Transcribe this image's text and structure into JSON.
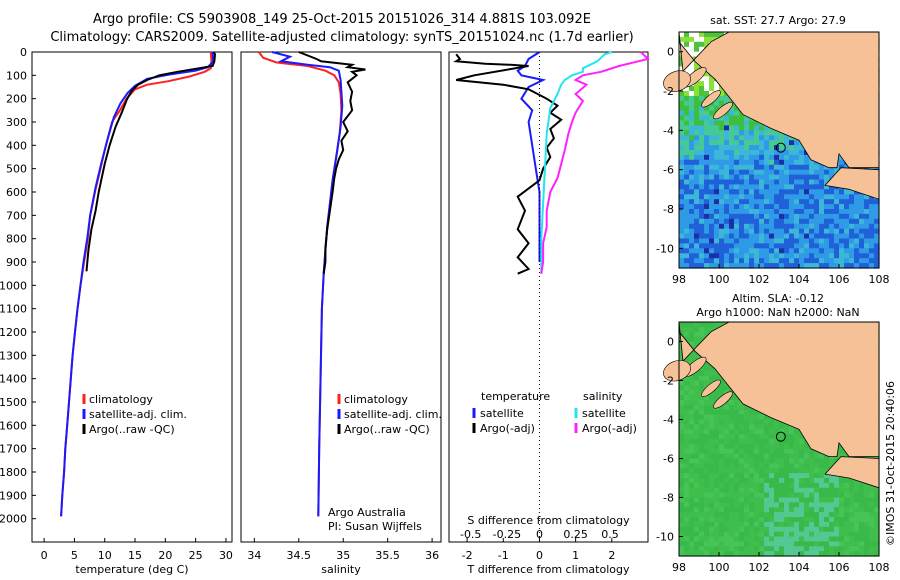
{
  "header": {
    "line1": "Argo profile: CS 5903908_149 25-Oct-2015 20151026_314 4.881S 103.092E",
    "line2": "Climatology: CARS2009. Satellite-adjusted climatology: synTS_20151024.nc (1.7d earlier)"
  },
  "colors": {
    "climatology": "#ff2020",
    "satellite": "#1a1aff",
    "argo": "#000000",
    "sat_salinity": "#22e5ee",
    "argo_salinity": "#ff22ff",
    "land": "#f6c197"
  },
  "chart_data": [
    {
      "type": "line",
      "id": "temperature",
      "xlabel": "temperature (deg C)",
      "ylabel": "",
      "xlim": [
        -2,
        31
      ],
      "ylim": [
        0,
        2100
      ],
      "xticks": [
        0,
        5,
        10,
        15,
        20,
        25,
        30
      ],
      "yticks": [
        0,
        100,
        200,
        300,
        400,
        500,
        600,
        700,
        800,
        900,
        1000,
        1100,
        1200,
        1300,
        1400,
        1500,
        1600,
        1700,
        1800,
        1900,
        2000
      ],
      "legend": [
        "climatology",
        "satellite-adj. clim.",
        "Argo(..raw -QC)"
      ],
      "series": [
        {
          "name": "climatology",
          "color": "#ff2020",
          "points": [
            [
              27.5,
              0
            ],
            [
              27.6,
              40
            ],
            [
              27.5,
              70
            ],
            [
              26.5,
              85
            ],
            [
              24,
              105
            ],
            [
              20.5,
              125
            ],
            [
              17,
              140
            ],
            [
              15,
              160
            ],
            [
              13.6,
              200
            ],
            [
              12.5,
              250
            ],
            [
              11.2,
              300
            ],
            [
              10.2,
              400
            ],
            [
              9.3,
              500
            ],
            [
              8.4,
              600
            ],
            [
              7.6,
              700
            ],
            [
              7.2,
              800
            ],
            [
              6.6,
              900
            ],
            [
              6.0,
              1000
            ],
            [
              5.5,
              1100
            ],
            [
              5.1,
              1200
            ],
            [
              4.7,
              1300
            ],
            [
              4.4,
              1400
            ],
            [
              4.1,
              1500
            ],
            [
              3.8,
              1600
            ],
            [
              3.5,
              1700
            ],
            [
              3.3,
              1800
            ],
            [
              3.0,
              1900
            ],
            [
              2.8,
              1990
            ]
          ]
        },
        {
          "name": "satellite-adj. clim.",
          "color": "#1a1aff",
          "points": [
            [
              27.8,
              0
            ],
            [
              27.9,
              40
            ],
            [
              27.0,
              65
            ],
            [
              25,
              80
            ],
            [
              21,
              95
            ],
            [
              17,
              115
            ],
            [
              15,
              145
            ],
            [
              13.8,
              175
            ],
            [
              12.6,
              220
            ],
            [
              11.5,
              280
            ],
            [
              10.4,
              380
            ],
            [
              9.4,
              480
            ],
            [
              8.5,
              580
            ],
            [
              7.6,
              700
            ],
            [
              7.1,
              800
            ],
            [
              6.5,
              900
            ],
            [
              6.0,
              1000
            ],
            [
              5.5,
              1100
            ],
            [
              5.1,
              1200
            ],
            [
              4.7,
              1300
            ],
            [
              4.4,
              1400
            ],
            [
              4.1,
              1500
            ],
            [
              3.8,
              1600
            ],
            [
              3.5,
              1700
            ],
            [
              3.3,
              1800
            ],
            [
              3.0,
              1900
            ],
            [
              2.8,
              1990
            ]
          ]
        },
        {
          "name": "Argo(..raw -QC)",
          "color": "#000000",
          "points": [
            [
              28.0,
              2
            ],
            [
              28.2,
              10
            ],
            [
              28.1,
              40
            ],
            [
              27.8,
              60
            ],
            [
              25.5,
              70
            ],
            [
              22,
              85
            ],
            [
              19,
              100
            ],
            [
              17,
              120
            ],
            [
              15.5,
              140
            ],
            [
              14.5,
              165
            ],
            [
              13.7,
              200
            ],
            [
              12.8,
              260
            ],
            [
              11.8,
              320
            ],
            [
              10.8,
              400
            ],
            [
              10.0,
              480
            ],
            [
              9.5,
              540
            ],
            [
              9.0,
              600
            ],
            [
              8.5,
              680
            ],
            [
              7.8,
              760
            ],
            [
              7.3,
              850
            ],
            [
              7.0,
              940
            ]
          ]
        }
      ]
    },
    {
      "type": "line",
      "id": "salinity",
      "xlabel": "salinity",
      "ylabel": "",
      "xlim": [
        33.85,
        36.1
      ],
      "ylim": [
        0,
        2100
      ],
      "xticks": [
        34,
        34.5,
        35,
        35.5,
        36
      ],
      "legend": [
        "climatology",
        "satellite-adj. clim.",
        "Argo(..raw -QC)"
      ],
      "annotations": [
        "Argo Australia",
        "PI: Susan Wijffels"
      ],
      "series": [
        {
          "name": "climatology",
          "color": "#ff2020",
          "points": [
            [
              34.05,
              0
            ],
            [
              34.1,
              25
            ],
            [
              34.25,
              45
            ],
            [
              34.6,
              60
            ],
            [
              34.8,
              80
            ],
            [
              34.9,
              100
            ],
            [
              34.95,
              130
            ],
            [
              34.97,
              180
            ],
            [
              34.98,
              250
            ],
            [
              34.96,
              350
            ],
            [
              34.92,
              450
            ],
            [
              34.88,
              550
            ],
            [
              34.85,
              650
            ],
            [
              34.82,
              750
            ],
            [
              34.8,
              850
            ],
            [
              34.78,
              950
            ],
            [
              34.76,
              1100
            ],
            [
              34.75,
              1300
            ],
            [
              34.74,
              1500
            ],
            [
              34.73,
              1700
            ],
            [
              34.72,
              1990
            ]
          ]
        },
        {
          "name": "satellite-adj. clim.",
          "color": "#1a1aff",
          "points": [
            [
              34.2,
              0
            ],
            [
              34.4,
              20
            ],
            [
              34.3,
              40
            ],
            [
              34.6,
              55
            ],
            [
              34.85,
              65
            ],
            [
              34.95,
              80
            ],
            [
              34.97,
              120
            ],
            [
              34.98,
              170
            ],
            [
              34.99,
              230
            ],
            [
              34.97,
              320
            ],
            [
              34.93,
              430
            ],
            [
              34.88,
              550
            ],
            [
              34.85,
              650
            ],
            [
              34.82,
              750
            ],
            [
              34.8,
              850
            ],
            [
              34.78,
              950
            ],
            [
              34.76,
              1100
            ],
            [
              34.75,
              1300
            ],
            [
              34.74,
              1500
            ],
            [
              34.73,
              1700
            ],
            [
              34.72,
              1990
            ]
          ]
        },
        {
          "name": "Argo(..raw -QC)",
          "color": "#000000",
          "points": [
            [
              34.5,
              0
            ],
            [
              34.7,
              30
            ],
            [
              34.75,
              40
            ],
            [
              35.1,
              55
            ],
            [
              35.05,
              65
            ],
            [
              35.25,
              75
            ],
            [
              35.1,
              85
            ],
            [
              35.15,
              100
            ],
            [
              35.05,
              130
            ],
            [
              35.1,
              170
            ],
            [
              35.08,
              210
            ],
            [
              35.1,
              250
            ],
            [
              35.0,
              300
            ],
            [
              35.05,
              340
            ],
            [
              34.98,
              380
            ],
            [
              35.0,
              420
            ],
            [
              34.95,
              460
            ],
            [
              34.92,
              500
            ],
            [
              34.9,
              540
            ],
            [
              34.88,
              600
            ],
            [
              34.85,
              680
            ],
            [
              34.82,
              760
            ],
            [
              34.8,
              840
            ],
            [
              34.8,
              900
            ],
            [
              34.78,
              950
            ]
          ]
        }
      ]
    },
    {
      "type": "line",
      "id": "difference",
      "xlabel": "T difference from climatology",
      "x2label": "S difference from climatology",
      "xlim": [
        -2.5,
        3.0
      ],
      "ylim": [
        0,
        2100
      ],
      "xticks": [
        -2,
        -1,
        0,
        1,
        2
      ],
      "x2ticks": [
        "-0.5",
        "-0.25",
        "0",
        "0.25",
        "0.5"
      ],
      "legend_temperature_title": "temperature",
      "legend_salinity_title": "salinity",
      "legend": [
        "satellite",
        "Argo(-adj)",
        "satellite",
        "Argo(-adj)"
      ],
      "series": [
        {
          "name": "T satellite",
          "color": "#1a1aff",
          "points": [
            [
              0,
              0
            ],
            [
              -0.3,
              30
            ],
            [
              -0.4,
              60
            ],
            [
              -0.6,
              80
            ],
            [
              -0.5,
              100
            ],
            [
              0.1,
              120
            ],
            [
              -0.3,
              150
            ],
            [
              -0.5,
              200
            ],
            [
              -0.2,
              250
            ],
            [
              -0.3,
              300
            ],
            [
              -0.2,
              400
            ],
            [
              -0.1,
              500
            ],
            [
              0,
              600
            ],
            [
              0,
              900
            ]
          ]
        },
        {
          "name": "T Argo(-adj)",
          "color": "#000000",
          "points": [
            [
              -2.3,
              10
            ],
            [
              -2.2,
              30
            ],
            [
              -2.3,
              40
            ],
            [
              -1.5,
              50
            ],
            [
              -0.8,
              55
            ],
            [
              -0.3,
              60
            ],
            [
              -1.8,
              100
            ],
            [
              -2.3,
              120
            ],
            [
              -1.0,
              140
            ],
            [
              -0.3,
              160
            ],
            [
              0.2,
              200
            ],
            [
              0.5,
              230
            ],
            [
              0.3,
              260
            ],
            [
              0.6,
              290
            ],
            [
              0.3,
              330
            ],
            [
              0.4,
              370
            ],
            [
              0.2,
              410
            ],
            [
              0.3,
              450
            ],
            [
              0.1,
              500
            ],
            [
              0,
              550
            ],
            [
              -0.6,
              620
            ],
            [
              -0.4,
              680
            ],
            [
              -0.6,
              760
            ],
            [
              -0.3,
              820
            ],
            [
              -0.6,
              880
            ],
            [
              -0.3,
              930
            ],
            [
              -0.6,
              950
            ]
          ]
        },
        {
          "name": "S satellite",
          "color": "#22e5ee",
          "points": [
            [
              2.0,
              0
            ],
            [
              1.8,
              10
            ],
            [
              1.6,
              40
            ],
            [
              1.2,
              70
            ],
            [
              1.2,
              85
            ],
            [
              0.9,
              100
            ],
            [
              0.7,
              120
            ],
            [
              0.6,
              140
            ],
            [
              0.5,
              180
            ],
            [
              0.3,
              240
            ],
            [
              0.2,
              350
            ],
            [
              0.15,
              500
            ],
            [
              0.1,
              650
            ],
            [
              0.05,
              800
            ],
            [
              0.05,
              950
            ]
          ]
        },
        {
          "name": "S Argo(-adj)",
          "color": "#ff22ff",
          "points": [
            [
              2.8,
              0
            ],
            [
              3.0,
              30
            ],
            [
              2.2,
              60
            ],
            [
              1.9,
              75
            ],
            [
              1.7,
              85
            ],
            [
              1.2,
              100
            ],
            [
              1.0,
              120
            ],
            [
              1.3,
              140
            ],
            [
              1.0,
              180
            ],
            [
              1.2,
              210
            ],
            [
              1.0,
              260
            ],
            [
              0.9,
              300
            ],
            [
              0.8,
              350
            ],
            [
              0.7,
              420
            ],
            [
              0.6,
              480
            ],
            [
              0.5,
              540
            ],
            [
              0.3,
              600
            ],
            [
              0.2,
              680
            ],
            [
              0.2,
              750
            ],
            [
              0.1,
              820
            ],
            [
              0.1,
              900
            ],
            [
              0.05,
              950
            ]
          ]
        }
      ]
    },
    {
      "type": "heatmap",
      "id": "sst_map",
      "title": "sat. SST: 27.7 Argo: 27.9",
      "xlim": [
        98,
        108
      ],
      "ylim": [
        -11,
        1
      ],
      "xticks": [
        98,
        100,
        102,
        104,
        106,
        108
      ],
      "yticks": [
        0,
        -2,
        -4,
        -6,
        -8,
        -10
      ],
      "marker": {
        "lon": 103.092,
        "lat": -4.881
      }
    },
    {
      "type": "heatmap",
      "id": "sla_map",
      "title": "Altim. SLA: -0.12",
      "subtitle": "Argo h1000: NaN h2000: NaN",
      "xlim": [
        98,
        108
      ],
      "ylim": [
        -11,
        1
      ],
      "xticks": [
        98,
        100,
        102,
        104,
        106,
        108
      ],
      "yticks": [
        0,
        -2,
        -4,
        -6,
        -8,
        -10
      ],
      "marker": {
        "lon": 103.092,
        "lat": -4.881
      }
    }
  ],
  "footer": {
    "credit": "©IMOS 31-Oct-2015 20:40:06"
  }
}
